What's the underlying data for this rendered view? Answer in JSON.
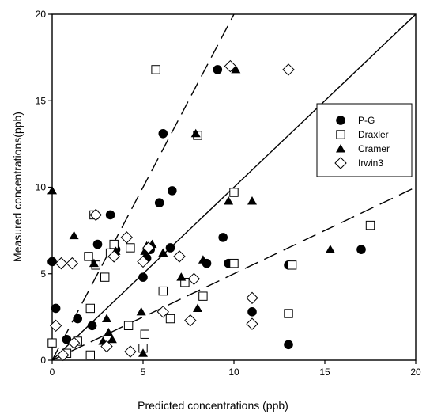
{
  "chart_data": {
    "type": "scatter",
    "title": "",
    "xlabel": "Predicted concentrations (ppb)",
    "ylabel": "Measured concentrations(ppb)",
    "xlim": [
      0,
      20
    ],
    "ylim": [
      0,
      20
    ],
    "xticks": [
      0,
      5,
      10,
      15,
      20
    ],
    "yticks": [
      0,
      5,
      10,
      15,
      20
    ],
    "grid": false,
    "legend_position": "right",
    "reference_lines": [
      {
        "style": "solid",
        "slope": 1
      },
      {
        "style": "dashed",
        "slope": 2
      },
      {
        "style": "dashed",
        "slope": 0.5
      }
    ],
    "series": [
      {
        "name": "P-G",
        "marker": "filled-circle",
        "color": "#000000",
        "points": [
          [
            0,
            5.7
          ],
          [
            0.2,
            3
          ],
          [
            0.8,
            1.2
          ],
          [
            1.4,
            2.4
          ],
          [
            2.2,
            2
          ],
          [
            2.5,
            6.7
          ],
          [
            3.2,
            8.4
          ],
          [
            3.5,
            6.4
          ],
          [
            5,
            4.8
          ],
          [
            5.2,
            5.9
          ],
          [
            5.4,
            6.4
          ],
          [
            5.9,
            9.1
          ],
          [
            6.1,
            13.1
          ],
          [
            6.5,
            6.5
          ],
          [
            6.6,
            9.8
          ],
          [
            8.5,
            5.6
          ],
          [
            9.1,
            16.8
          ],
          [
            9.4,
            7.1
          ],
          [
            9.7,
            5.6
          ],
          [
            11,
            2.8
          ],
          [
            13,
            0.9
          ],
          [
            13,
            5.5
          ],
          [
            17,
            6.4
          ]
        ]
      },
      {
        "name": "Draxler",
        "marker": "open-square",
        "color": "#000000",
        "points": [
          [
            0,
            1
          ],
          [
            0.8,
            0.4
          ],
          [
            1.4,
            1.1
          ],
          [
            2,
            6
          ],
          [
            2.1,
            3
          ],
          [
            2.1,
            0.3
          ],
          [
            2.3,
            8.4
          ],
          [
            2.4,
            5.5
          ],
          [
            2.9,
            4.8
          ],
          [
            3.2,
            6.2
          ],
          [
            3.4,
            6.7
          ],
          [
            4.2,
            2
          ],
          [
            4.3,
            6.5
          ],
          [
            5,
            0.7
          ],
          [
            5.1,
            1.5
          ],
          [
            5.7,
            16.8
          ],
          [
            6.1,
            4
          ],
          [
            6.5,
            2.4
          ],
          [
            7.3,
            4.5
          ],
          [
            8,
            13
          ],
          [
            8.3,
            3.7
          ],
          [
            10,
            9.7
          ],
          [
            10,
            5.6
          ],
          [
            13,
            2.7
          ],
          [
            13.2,
            5.5
          ],
          [
            17.5,
            7.8
          ]
        ]
      },
      {
        "name": "Cramer",
        "marker": "filled-triangle",
        "color": "#000000",
        "points": [
          [
            0,
            9.8
          ],
          [
            1.2,
            7.2
          ],
          [
            2.3,
            5.6
          ],
          [
            2.8,
            1.1
          ],
          [
            3,
            2.4
          ],
          [
            3.1,
            1.6
          ],
          [
            3.3,
            1.2
          ],
          [
            3.5,
            6.3
          ],
          [
            4.9,
            2.8
          ],
          [
            5,
            0.4
          ],
          [
            5.1,
            6.3
          ],
          [
            5.2,
            6.6
          ],
          [
            5.5,
            6.7
          ],
          [
            6.1,
            6.2
          ],
          [
            7.1,
            4.8
          ],
          [
            7.9,
            13.1
          ],
          [
            8,
            3
          ],
          [
            8.3,
            5.8
          ],
          [
            9.7,
            9.2
          ],
          [
            10.1,
            16.8
          ],
          [
            11,
            9.2
          ],
          [
            15.3,
            6.4
          ]
        ]
      },
      {
        "name": "Irwin3",
        "marker": "open-diamond",
        "color": "#000000",
        "points": [
          [
            0.2,
            2
          ],
          [
            0.5,
            5.6
          ],
          [
            0.6,
            0.3
          ],
          [
            1.1,
            5.6
          ],
          [
            1.2,
            1
          ],
          [
            2.4,
            8.4
          ],
          [
            3,
            0.8
          ],
          [
            3.4,
            6
          ],
          [
            4.1,
            7.1
          ],
          [
            4.3,
            0.5
          ],
          [
            5,
            5.7
          ],
          [
            5.3,
            6.5
          ],
          [
            6.1,
            2.8
          ],
          [
            7,
            6
          ],
          [
            7.8,
            4.7
          ],
          [
            7.6,
            2.3
          ],
          [
            9.8,
            17
          ],
          [
            11,
            3.6
          ],
          [
            11,
            2.1
          ],
          [
            13,
            16.8
          ]
        ]
      }
    ]
  }
}
